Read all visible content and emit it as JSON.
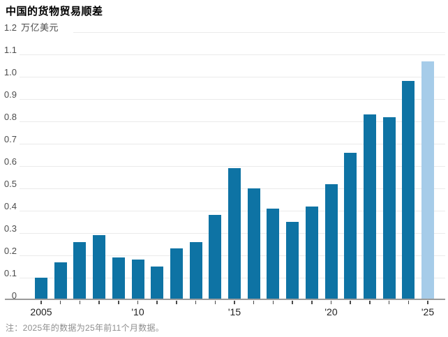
{
  "title": "中国的货物贸易顺差",
  "note": "注：2025年的数据为25年前11个月数据。",
  "chart_data": {
    "type": "bar",
    "title": "中国的货物贸易顺差",
    "ylabel": "万亿美元",
    "xlabel": "",
    "ylim": [
      0,
      1.2
    ],
    "ytick_step": 0.1,
    "zero_label": "0",
    "grid": true,
    "legend": false,
    "categories": [
      2005,
      2006,
      2007,
      2008,
      2009,
      2010,
      2011,
      2012,
      2013,
      2014,
      2015,
      2016,
      2017,
      2018,
      2019,
      2020,
      2021,
      2022,
      2023,
      2024,
      2025
    ],
    "values": [
      0.1,
      0.17,
      0.26,
      0.29,
      0.19,
      0.18,
      0.15,
      0.23,
      0.26,
      0.38,
      0.59,
      0.5,
      0.41,
      0.35,
      0.42,
      0.52,
      0.66,
      0.83,
      0.82,
      0.98,
      1.07
    ],
    "highlight_year": 2025,
    "xtick_labels": [
      {
        "year": 2005,
        "label": "2005"
      },
      {
        "year": 2010,
        "label": "'10"
      },
      {
        "year": 2015,
        "label": "'15"
      },
      {
        "year": 2020,
        "label": "'20"
      },
      {
        "year": 2025,
        "label": "'25"
      }
    ],
    "colors": {
      "bar": "#0e73a4",
      "bar_highlight": "#a6cce9",
      "gridline": "#eaeaea",
      "axis": "#9a9a9a"
    }
  }
}
